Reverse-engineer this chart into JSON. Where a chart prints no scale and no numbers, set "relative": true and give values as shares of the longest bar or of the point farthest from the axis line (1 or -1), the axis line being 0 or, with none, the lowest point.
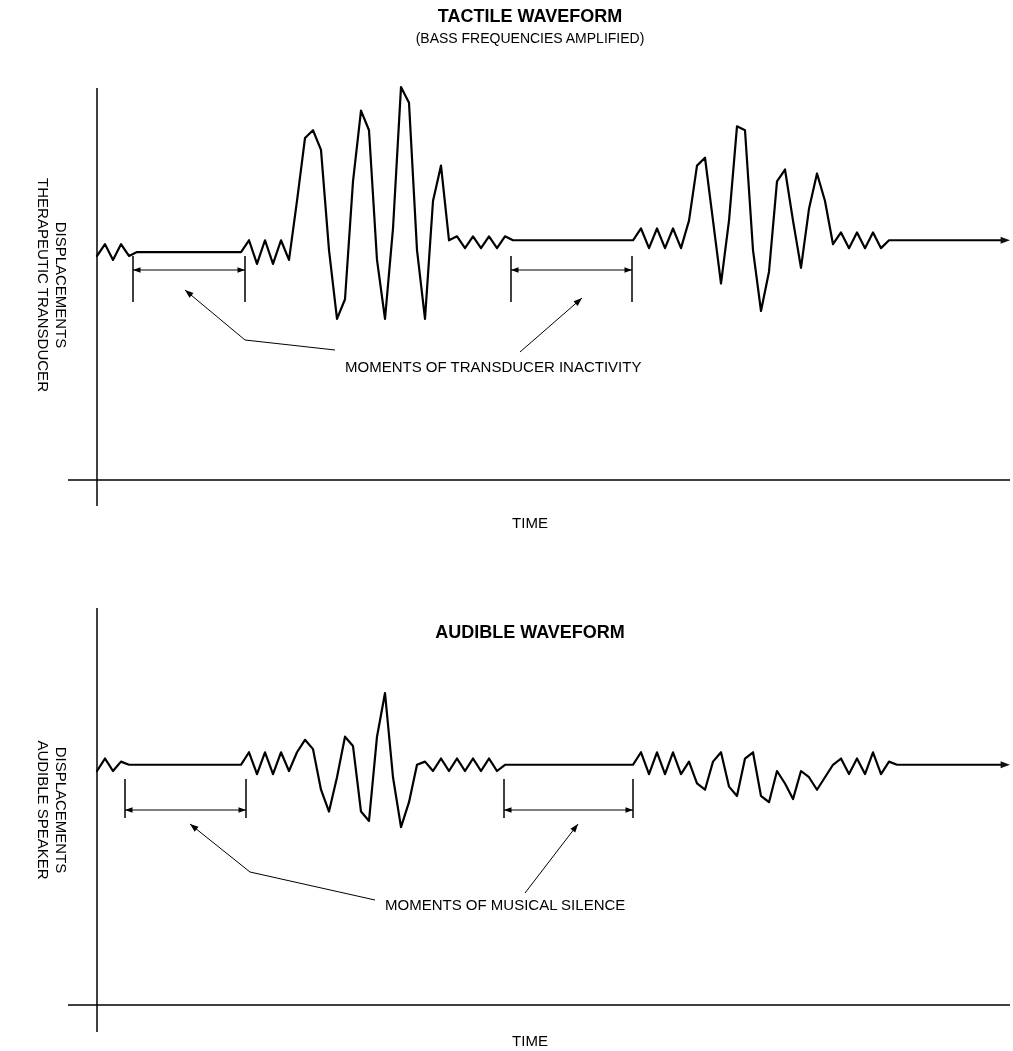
{
  "chart_data": [
    {
      "type": "line",
      "title": "TACTILE WAVEFORM",
      "subtitle": "(BASS FREQUENCIES AMPLIFIED)",
      "xlabel": "TIME",
      "ylabel": "THERAPEUTIC TRANSDUCER\nDISPLACEMENTS",
      "relative": true,
      "annotations": [
        "MOMENTS OF TRANSDUCER INACTIVITY"
      ],
      "categories": [
        null,
        null,
        null,
        null,
        null,
        null,
        null,
        null,
        null,
        null,
        null,
        null,
        null,
        null,
        null,
        null,
        null,
        null,
        null,
        null,
        null,
        null,
        null,
        null,
        null,
        null,
        null,
        null,
        null,
        null,
        null,
        null,
        null,
        null,
        null,
        null,
        null,
        null,
        null,
        null,
        null,
        null,
        null,
        null,
        null,
        null,
        null,
        null,
        null,
        null,
        null,
        null,
        null,
        null,
        null,
        null,
        null,
        null,
        null,
        null,
        null,
        null,
        null,
        null,
        null,
        null,
        null,
        null,
        null,
        null,
        null,
        null,
        null,
        null,
        null,
        null,
        null,
        null,
        null,
        null,
        null,
        null,
        null,
        null,
        null,
        null,
        null,
        null,
        null,
        null,
        null,
        null,
        null,
        null,
        null,
        null,
        null,
        null,
        null,
        null,
        null,
        null,
        null,
        null,
        null,
        null,
        null,
        null,
        null,
        null,
        null,
        null,
        null,
        null
      ],
      "series": [
        {
          "color": "#000000",
          "values": [
            0.57,
            0.6,
            0.56,
            0.6,
            0.57,
            0.58,
            0.58,
            0.58,
            0.58,
            0.58,
            0.58,
            0.58,
            0.58,
            0.58,
            0.58,
            0.58,
            0.58,
            0.58,
            0.58,
            0.61,
            0.55,
            0.61,
            0.55,
            0.61,
            0.56,
            0.71,
            0.87,
            0.89,
            0.84,
            0.585,
            0.41,
            0.46,
            0.76,
            0.94,
            0.89,
            0.56,
            0.41,
            0.64,
            1.0,
            0.96,
            0.585,
            0.41,
            0.71,
            0.8,
            0.61,
            0.62,
            0.59,
            0.62,
            0.59,
            0.62,
            0.59,
            0.62,
            0.61,
            0.61,
            0.61,
            0.61,
            0.61,
            0.61,
            0.61,
            0.61,
            0.61,
            0.61,
            0.61,
            0.61,
            0.61,
            0.61,
            0.61,
            0.61,
            0.64,
            0.59,
            0.64,
            0.59,
            0.64,
            0.59,
            0.66,
            0.8,
            0.82,
            0.66,
            0.5,
            0.66,
            0.9,
            0.89,
            0.585,
            0.43,
            0.53,
            0.76,
            0.79,
            0.66,
            0.54,
            0.69,
            0.78,
            0.71,
            0.6,
            0.63,
            0.59,
            0.63,
            0.59,
            0.63,
            0.59,
            0.61,
            0.61,
            0.61,
            0.61,
            0.61,
            0.61,
            0.61,
            0.61,
            0.61,
            0.61,
            0.61,
            0.61,
            0.61,
            0.61,
            0.61
          ]
        }
      ]
    },
    {
      "type": "line",
      "title": "AUDIBLE WAVEFORM",
      "xlabel": "TIME",
      "ylabel": "AUDIBLE SPEAKER\nDISPLACEMENTS",
      "relative": true,
      "annotations": [
        "MOMENTS OF MUSICAL SILENCE"
      ],
      "categories": [
        null,
        null,
        null,
        null,
        null,
        null,
        null,
        null,
        null,
        null,
        null,
        null,
        null,
        null,
        null,
        null,
        null,
        null,
        null,
        null,
        null,
        null,
        null,
        null,
        null,
        null,
        null,
        null,
        null,
        null,
        null,
        null,
        null,
        null,
        null,
        null,
        null,
        null,
        null,
        null,
        null,
        null,
        null,
        null,
        null,
        null,
        null,
        null,
        null,
        null,
        null,
        null,
        null,
        null,
        null,
        null,
        null,
        null,
        null,
        null,
        null,
        null,
        null,
        null,
        null,
        null,
        null,
        null,
        null,
        null,
        null,
        null,
        null,
        null,
        null,
        null,
        null,
        null,
        null,
        null,
        null,
        null,
        null,
        null,
        null,
        null,
        null,
        null,
        null,
        null,
        null,
        null,
        null,
        null,
        null,
        null,
        null,
        null,
        null,
        null,
        null,
        null,
        null,
        null,
        null,
        null,
        null,
        null,
        null,
        null,
        null,
        null,
        null,
        null
      ],
      "series": [
        {
          "color": "#000000",
          "values": [
            0.75,
            0.79,
            0.75,
            0.78,
            0.77,
            0.77,
            0.77,
            0.77,
            0.77,
            0.77,
            0.77,
            0.77,
            0.77,
            0.77,
            0.77,
            0.77,
            0.77,
            0.77,
            0.77,
            0.81,
            0.74,
            0.81,
            0.74,
            0.81,
            0.75,
            0.81,
            0.85,
            0.82,
            0.69,
            0.62,
            0.73,
            0.86,
            0.83,
            0.62,
            0.59,
            0.86,
            1.0,
            0.73,
            0.57,
            0.65,
            0.77,
            0.78,
            0.75,
            0.79,
            0.75,
            0.79,
            0.75,
            0.79,
            0.75,
            0.79,
            0.75,
            0.77,
            0.77,
            0.77,
            0.77,
            0.77,
            0.77,
            0.77,
            0.77,
            0.77,
            0.77,
            0.77,
            0.77,
            0.77,
            0.77,
            0.77,
            0.77,
            0.77,
            0.81,
            0.74,
            0.81,
            0.74,
            0.81,
            0.74,
            0.78,
            0.71,
            0.69,
            0.78,
            0.81,
            0.7,
            0.67,
            0.79,
            0.81,
            0.67,
            0.65,
            0.75,
            0.71,
            0.66,
            0.75,
            0.73,
            0.69,
            0.73,
            0.77,
            0.79,
            0.74,
            0.79,
            0.74,
            0.81,
            0.74,
            0.78,
            0.77,
            0.77,
            0.77,
            0.77,
            0.77,
            0.77,
            0.77,
            0.77,
            0.77,
            0.77,
            0.77,
            0.77,
            0.77,
            0.77
          ]
        }
      ]
    }
  ]
}
